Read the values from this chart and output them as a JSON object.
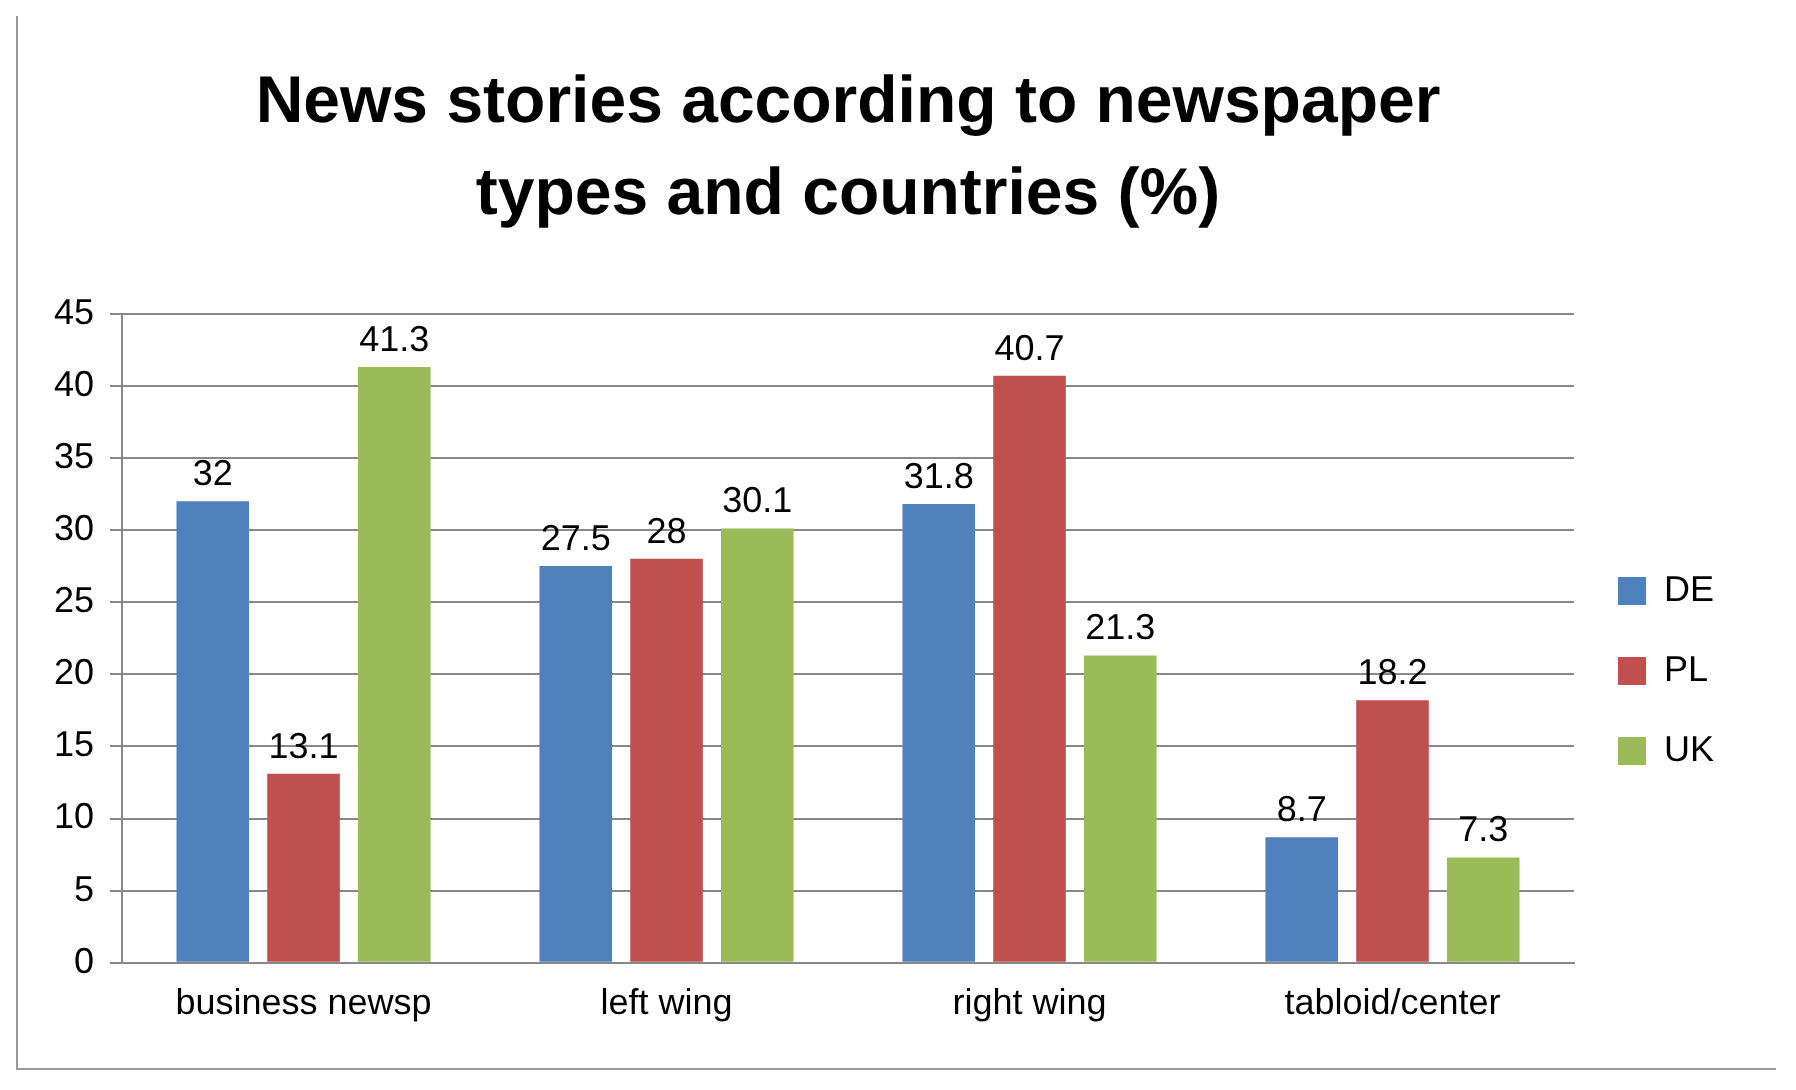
{
  "chart_data": {
    "type": "bar",
    "title": "News stories according to newspaper types and countries (%)",
    "categories": [
      "business newsp",
      "left wing",
      "right wing",
      "tabloid/center"
    ],
    "series": [
      {
        "name": "DE",
        "color": "#4f81bd",
        "values": [
          32,
          27.5,
          31.8,
          8.7
        ]
      },
      {
        "name": "PL",
        "color": "#c0504d",
        "values": [
          13.1,
          28,
          40.7,
          18.2
        ]
      },
      {
        "name": "UK",
        "color": "#9bbb59",
        "values": [
          41.3,
          30.1,
          21.3,
          7.3
        ]
      }
    ],
    "ylim": [
      0,
      45
    ],
    "yticks": [
      0,
      5,
      10,
      15,
      20,
      25,
      30,
      35,
      40,
      45
    ],
    "grid": "y",
    "legend": "right",
    "data_labels": true
  }
}
